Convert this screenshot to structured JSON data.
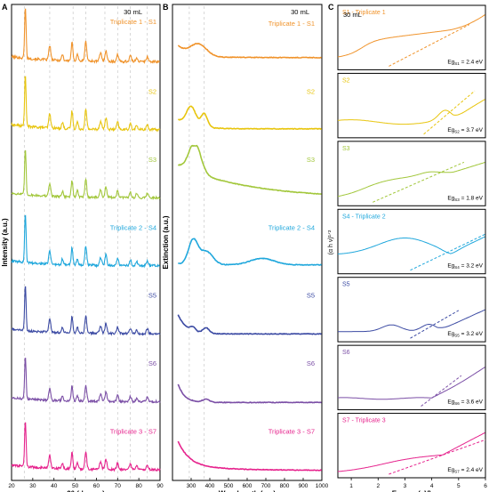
{
  "chart_data": [
    {
      "type": "line",
      "panel_label": "A",
      "condition_label": "30 mL",
      "xlabel": "2θ (degree)",
      "ylabel": "Intensity (a.u.)",
      "xlim": [
        20,
        90
      ],
      "xticks": [
        "20",
        "30",
        "40",
        "50",
        "60",
        "70",
        "80",
        "90"
      ],
      "reference_lines_x": [
        26,
        38,
        49,
        55,
        64,
        70,
        76,
        84
      ],
      "series": [
        {
          "name": "Triplicate 1 - S1",
          "color": "#f0932b"
        },
        {
          "name": "S2",
          "color": "#e8c50e"
        },
        {
          "name": "S3",
          "color": "#a2c73b"
        },
        {
          "name": "Triplicate 2 - S4",
          "color": "#1fa7dc"
        },
        {
          "name": "S5",
          "color": "#3b4aa3"
        },
        {
          "name": "S6",
          "color": "#7b4fa6"
        },
        {
          "name": "Triplicate 3 - S7",
          "color": "#e6238d"
        }
      ]
    },
    {
      "type": "line",
      "panel_label": "B",
      "condition_label": "30 mL",
      "xlabel": "Wavelength (nm)",
      "ylabel": "Extinction (a.u.)",
      "xlim": [
        200,
        1000
      ],
      "xticks": [
        "300",
        "400",
        "500",
        "600",
        "700",
        "800",
        "900",
        "1000"
      ],
      "reference_lines_x": [
        290,
        370
      ],
      "series": [
        {
          "name": "Triplicate 1 - S1",
          "color": "#f0932b"
        },
        {
          "name": "S2",
          "color": "#e8c50e"
        },
        {
          "name": "S3",
          "color": "#a2c73b"
        },
        {
          "name": "Triplicate 2 - S4",
          "color": "#1fa7dc"
        },
        {
          "name": "S5",
          "color": "#3b4aa3"
        },
        {
          "name": "S6",
          "color": "#7b4fa6"
        },
        {
          "name": "Triplicate 3 - S7",
          "color": "#e6238d"
        }
      ]
    },
    {
      "type": "line",
      "panel_label": "C",
      "condition_label": "30 mL",
      "xlabel": "Energy (eV)",
      "ylabel": "(α h ν)¹ᐟ²",
      "xlim": [
        0.5,
        6
      ],
      "xticks": [
        "1",
        "2",
        "3",
        "4",
        "5",
        "6"
      ],
      "series": [
        {
          "name": "S1 - Triplicate 1",
          "color": "#f0932b",
          "bandgap": "Eg",
          "sub": "S1",
          "value": "= 2.4 eV"
        },
        {
          "name": "S2",
          "color": "#e8c50e",
          "bandgap": "Eg",
          "sub": "S2",
          "value": "= 3.7 eV"
        },
        {
          "name": "S3",
          "color": "#a2c73b",
          "bandgap": "Eg",
          "sub": "S3",
          "value": "= 1.8 eV"
        },
        {
          "name": "S4 - Triplicate 2",
          "color": "#1fa7dc",
          "bandgap": "Eg",
          "sub": "S4",
          "value": "= 3.2 eV"
        },
        {
          "name": "S5",
          "color": "#3b4aa3",
          "bandgap": "Eg",
          "sub": "S5",
          "value": "= 3.2 eV"
        },
        {
          "name": "S6",
          "color": "#7b4fa6",
          "bandgap": "Eg",
          "sub": "S6",
          "value": "= 3.6 eV"
        },
        {
          "name": "S7 - Triplicate 3",
          "color": "#e6238d",
          "bandgap": "Eg",
          "sub": "S7",
          "value": "= 2.4 eV"
        }
      ]
    }
  ]
}
